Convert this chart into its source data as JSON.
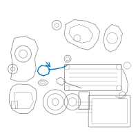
{
  "bg_color": "#ffffff",
  "line_color": "#888888",
  "dark_line": "#555555",
  "highlight_color": "#0077bb",
  "arrow_color": "#0077bb"
}
